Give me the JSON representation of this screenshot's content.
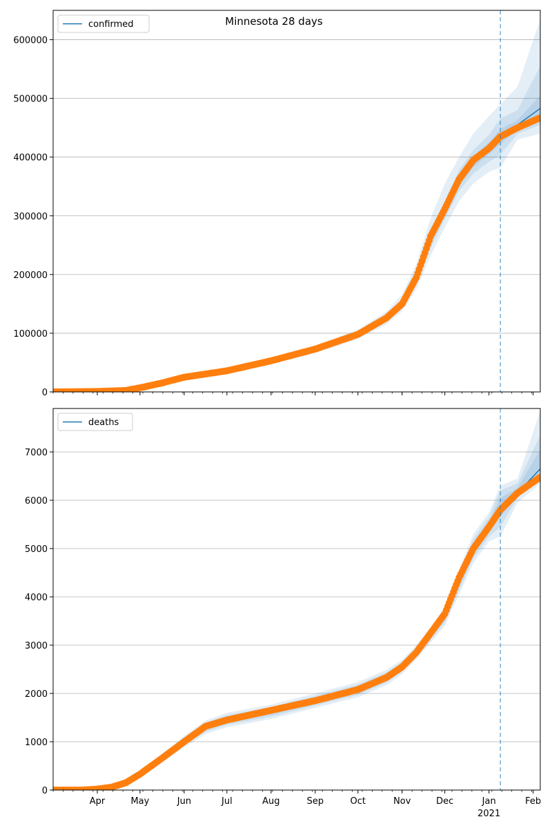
{
  "chart_data": [
    {
      "type": "line",
      "title": "Minnesota 28 days",
      "xlabel": "",
      "ylabel": "",
      "legend": {
        "entries": [
          "confirmed"
        ],
        "placement": "top-left"
      },
      "grid": "y-major",
      "x_range": [
        "2020-03-01",
        "2021-02-06"
      ],
      "x_ticks": [
        {
          "date": "2020-04-01",
          "label": "Apr",
          "sub": ""
        },
        {
          "date": "2020-05-01",
          "label": "May",
          "sub": ""
        },
        {
          "date": "2020-06-01",
          "label": "Jun",
          "sub": ""
        },
        {
          "date": "2020-07-01",
          "label": "Jul",
          "sub": ""
        },
        {
          "date": "2020-08-01",
          "label": "Aug",
          "sub": ""
        },
        {
          "date": "2020-09-01",
          "label": "Sep",
          "sub": ""
        },
        {
          "date": "2020-10-01",
          "label": "Oct",
          "sub": ""
        },
        {
          "date": "2020-11-01",
          "label": "Nov",
          "sub": ""
        },
        {
          "date": "2020-12-01",
          "label": "Dec",
          "sub": ""
        },
        {
          "date": "2021-01-01",
          "label": "Jan",
          "sub": "2021"
        },
        {
          "date": "2021-02-01",
          "label": "Feb",
          "sub": ""
        }
      ],
      "ylim": [
        0,
        650000
      ],
      "y_ticks": [
        0,
        100000,
        200000,
        300000,
        400000,
        500000,
        600000
      ],
      "forecast_start": "2021-01-09",
      "series": [
        {
          "name": "confirmed",
          "role": "model",
          "color": "#1f77b4",
          "points": [
            [
              "2020-03-01",
              0
            ],
            [
              "2020-04-01",
              1000
            ],
            [
              "2020-04-21",
              3000
            ],
            [
              "2020-05-01",
              7000
            ],
            [
              "2020-05-16",
              15000
            ],
            [
              "2020-06-01",
              24000
            ],
            [
              "2020-07-01",
              35000
            ],
            [
              "2020-08-01",
              52000
            ],
            [
              "2020-09-01",
              72000
            ],
            [
              "2020-10-01",
              97000
            ],
            [
              "2020-10-21",
              125000
            ],
            [
              "2020-11-01",
              150000
            ],
            [
              "2020-11-11",
              195000
            ],
            [
              "2020-11-21",
              260000
            ],
            [
              "2020-12-01",
              310000
            ],
            [
              "2020-12-11",
              360000
            ],
            [
              "2020-12-21",
              392000
            ],
            [
              "2021-01-01",
              415000
            ],
            [
              "2021-01-09",
              435000
            ],
            [
              "2021-01-21",
              455000
            ],
            [
              "2021-02-06",
              483000
            ]
          ]
        },
        {
          "name": "observed",
          "role": "observed",
          "color": "#ff7f0e",
          "points": [
            [
              "2020-03-01",
              0
            ],
            [
              "2020-04-01",
              800
            ],
            [
              "2020-04-21",
              2500
            ],
            [
              "2020-05-01",
              7000
            ],
            [
              "2020-05-16",
              15000
            ],
            [
              "2020-06-01",
              25000
            ],
            [
              "2020-07-01",
              36000
            ],
            [
              "2020-08-01",
              53000
            ],
            [
              "2020-09-01",
              73000
            ],
            [
              "2020-10-01",
              98000
            ],
            [
              "2020-10-21",
              126000
            ],
            [
              "2020-11-01",
              150000
            ],
            [
              "2020-11-11",
              195000
            ],
            [
              "2020-11-21",
              265000
            ],
            [
              "2020-12-01",
              312000
            ],
            [
              "2020-12-11",
              362000
            ],
            [
              "2020-12-21",
              395000
            ],
            [
              "2021-01-01",
              415000
            ],
            [
              "2021-01-09",
              435000
            ],
            [
              "2021-01-21",
              450000
            ],
            [
              "2021-02-06",
              467000
            ]
          ]
        }
      ],
      "bands": [
        {
          "color": "#1f77b4",
          "opacity": 0.12,
          "lower": [
            0,
            500,
            2000,
            5500,
            13000,
            21000,
            31000,
            47000,
            66000,
            90000,
            115000,
            137000,
            175000,
            232000,
            280000,
            325000,
            355000,
            375000,
            382000,
            430000,
            440000
          ],
          "upper": [
            0,
            1500,
            4000,
            8500,
            17000,
            27000,
            39000,
            57000,
            78000,
            106000,
            137000,
            166000,
            218000,
            295000,
            355000,
            400000,
            440000,
            470000,
            490000,
            520000,
            635000
          ]
        },
        {
          "color": "#1f77b4",
          "opacity": 0.12,
          "lower": [
            0,
            700,
            2500,
            6200,
            14000,
            22500,
            33000,
            49500,
            69000,
            93500,
            120000,
            143000,
            185000,
            245000,
            295000,
            342000,
            372000,
            392000,
            404000,
            440000,
            455000
          ],
          "upper": [
            0,
            1300,
            3500,
            7800,
            16000,
            25500,
            37000,
            54500,
            75000,
            100500,
            130000,
            157000,
            205000,
            275000,
            325000,
            378000,
            412000,
            438000,
            466000,
            480000,
            555000
          ]
        },
        {
          "color": "#1f77b4",
          "opacity": 0.12,
          "lower": [
            0,
            850,
            2800,
            6600,
            14600,
            23300,
            34000,
            51000,
            71000,
            95500,
            122500,
            147000,
            190000,
            252000,
            303000,
            351000,
            383000,
            405000,
            422000,
            447000,
            470000
          ],
          "upper": [
            0,
            1150,
            3200,
            7400,
            15400,
            24700,
            36000,
            53000,
            73000,
            98500,
            127500,
            153000,
            200000,
            268000,
            317000,
            369000,
            401000,
            425000,
            448000,
            463000,
            505000
          ]
        }
      ]
    },
    {
      "type": "line",
      "title": "",
      "xlabel": "",
      "ylabel": "",
      "legend": {
        "entries": [
          "deaths"
        ],
        "placement": "top-left"
      },
      "grid": "y-major",
      "x_range": [
        "2020-03-01",
        "2021-02-06"
      ],
      "ylim": [
        0,
        7900
      ],
      "y_ticks": [
        0,
        1000,
        2000,
        3000,
        4000,
        5000,
        6000,
        7000
      ],
      "forecast_start": "2021-01-09",
      "series": [
        {
          "name": "deaths",
          "role": "model",
          "color": "#1f77b4",
          "points": [
            [
              "2020-03-01",
              0
            ],
            [
              "2020-03-21",
              0
            ],
            [
              "2020-04-01",
              20
            ],
            [
              "2020-04-11",
              60
            ],
            [
              "2020-04-21",
              150
            ],
            [
              "2020-05-01",
              330
            ],
            [
              "2020-05-16",
              650
            ],
            [
              "2020-06-01",
              1000
            ],
            [
              "2020-06-16",
              1300
            ],
            [
              "2020-07-01",
              1450
            ],
            [
              "2020-08-01",
              1620
            ],
            [
              "2020-09-01",
              1850
            ],
            [
              "2020-10-01",
              2080
            ],
            [
              "2020-10-21",
              2330
            ],
            [
              "2020-11-01",
              2550
            ],
            [
              "2020-11-11",
              2850
            ],
            [
              "2020-11-21",
              3200
            ],
            [
              "2020-12-01",
              3600
            ],
            [
              "2020-12-11",
              4300
            ],
            [
              "2020-12-21",
              5000
            ],
            [
              "2021-01-01",
              5450
            ],
            [
              "2021-01-09",
              5850
            ],
            [
              "2021-01-21",
              6150
            ],
            [
              "2021-02-06",
              6650
            ]
          ]
        },
        {
          "name": "observed",
          "role": "observed",
          "color": "#ff7f0e",
          "points": [
            [
              "2020-03-01",
              0
            ],
            [
              "2020-03-21",
              0
            ],
            [
              "2020-04-01",
              20
            ],
            [
              "2020-04-11",
              60
            ],
            [
              "2020-04-21",
              150
            ],
            [
              "2020-05-01",
              330
            ],
            [
              "2020-05-16",
              650
            ],
            [
              "2020-06-01",
              1000
            ],
            [
              "2020-06-16",
              1320
            ],
            [
              "2020-07-01",
              1450
            ],
            [
              "2020-08-01",
              1650
            ],
            [
              "2020-09-01",
              1850
            ],
            [
              "2020-10-01",
              2080
            ],
            [
              "2020-10-21",
              2330
            ],
            [
              "2020-11-01",
              2550
            ],
            [
              "2020-11-11",
              2850
            ],
            [
              "2020-11-21",
              3250
            ],
            [
              "2020-12-01",
              3650
            ],
            [
              "2020-12-11",
              4400
            ],
            [
              "2020-12-21",
              5000
            ],
            [
              "2021-01-01",
              5450
            ],
            [
              "2021-01-09",
              5800
            ],
            [
              "2021-01-21",
              6150
            ],
            [
              "2021-02-06",
              6480
            ]
          ]
        }
      ],
      "bands": [
        {
          "color": "#1f77b4",
          "opacity": 0.12,
          "lower": [
            0,
            0,
            10,
            40,
            120,
            280,
            570,
            880,
            1160,
            1300,
            1470,
            1700,
            1920,
            2170,
            2400,
            2700,
            3050,
            3400,
            4050,
            4700,
            5150,
            5250,
            5950,
            6350
          ],
          "upper": [
            0,
            0,
            30,
            80,
            180,
            380,
            730,
            1120,
            1440,
            1600,
            1770,
            2000,
            2240,
            2490,
            2700,
            3000,
            3350,
            3800,
            4550,
            5300,
            5750,
            6300,
            6450,
            7850
          ]
        },
        {
          "color": "#1f77b4",
          "opacity": 0.12,
          "lower": [
            0,
            0,
            13,
            47,
            133,
            300,
            597,
            920,
            1207,
            1350,
            1520,
            1750,
            1973,
            2223,
            2450,
            2750,
            3100,
            3467,
            4133,
            4800,
            5250,
            5450,
            6050,
            6500
          ],
          "upper": [
            0,
            0,
            27,
            73,
            167,
            360,
            703,
            1080,
            1393,
            1550,
            1720,
            1950,
            2187,
            2437,
            2650,
            2950,
            3300,
            3733,
            4467,
            5200,
            5650,
            6200,
            6350,
            7350
          ]
        },
        {
          "color": "#1f77b4",
          "opacity": 0.12,
          "lower": [
            0,
            0,
            16,
            54,
            143,
            316,
            620,
            955,
            1250,
            1395,
            1565,
            1795,
            2020,
            2270,
            2495,
            2795,
            3145,
            3530,
            4210,
            4890,
            5340,
            5650,
            6100,
            6600
          ],
          "upper": [
            0,
            0,
            24,
            66,
            157,
            344,
            680,
            1045,
            1350,
            1505,
            1675,
            1905,
            2140,
            2390,
            2605,
            2905,
            3255,
            3670,
            4390,
            5110,
            5560,
            6050,
            6250,
            7050
          ]
        }
      ]
    }
  ]
}
